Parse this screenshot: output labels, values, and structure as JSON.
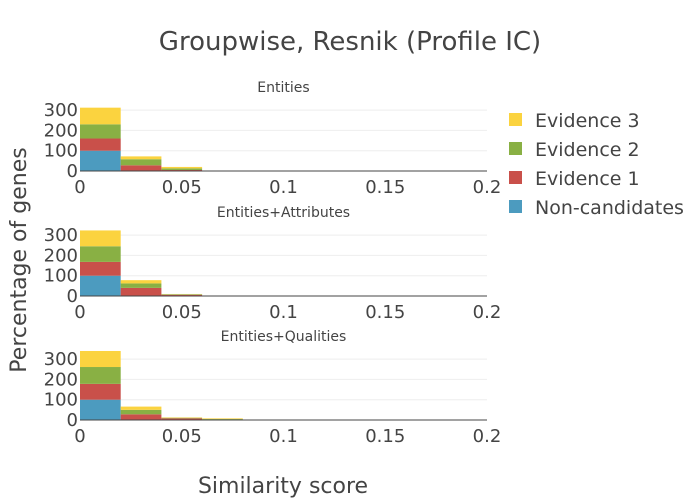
{
  "chart_data": {
    "type": "bar",
    "title": "Groupwise, Resnik (Profile IC)",
    "xlabel": "Similarity score",
    "ylabel": "Percentage of genes",
    "xlim": [
      0,
      0.2
    ],
    "ylim": [
      0,
      330
    ],
    "x_ticks": [
      "0",
      "0.05",
      "0.1",
      "0.15",
      "0.2"
    ],
    "y_ticks": [
      "0",
      "100",
      "200",
      "300"
    ],
    "bin_edges": [
      0,
      0.02,
      0.04,
      0.06,
      0.08
    ],
    "legend": [
      "Evidence 3",
      "Evidence 2",
      "Evidence 1",
      "Non-candidates"
    ],
    "series_colors": {
      "Non-candidates": "#4c9bbf",
      "Evidence 1": "#c9504a",
      "Evidence 2": "#89b044",
      "Evidence 3": "#fbd33f"
    },
    "panels": [
      {
        "title": "Entities",
        "series": [
          {
            "name": "Non-candidates",
            "values": [
              100,
              0,
              0,
              0
            ]
          },
          {
            "name": "Evidence 1",
            "values": [
              60,
              28,
              5,
              0
            ]
          },
          {
            "name": "Evidence 2",
            "values": [
              70,
              30,
              8,
              0
            ]
          },
          {
            "name": "Evidence 3",
            "values": [
              82,
              14,
              7,
              0
            ]
          }
        ]
      },
      {
        "title": "Entities+Attributes",
        "series": [
          {
            "name": "Non-candidates",
            "values": [
              100,
              0,
              0,
              0
            ]
          },
          {
            "name": "Evidence 1",
            "values": [
              68,
              40,
              6,
              2
            ]
          },
          {
            "name": "Evidence 2",
            "values": [
              77,
              22,
              3,
              0
            ]
          },
          {
            "name": "Evidence 3",
            "values": [
              78,
              16,
              1,
              0
            ]
          }
        ]
      },
      {
        "title": "Entities+Qualities",
        "series": [
          {
            "name": "Non-candidates",
            "values": [
              100,
              0,
              0,
              0
            ]
          },
          {
            "name": "Evidence 1",
            "values": [
              78,
              28,
              8,
              3
            ]
          },
          {
            "name": "Evidence 2",
            "values": [
              83,
              22,
              3,
              2
            ]
          },
          {
            "name": "Evidence 3",
            "values": [
              79,
              16,
              2,
              3
            ]
          }
        ]
      }
    ]
  }
}
